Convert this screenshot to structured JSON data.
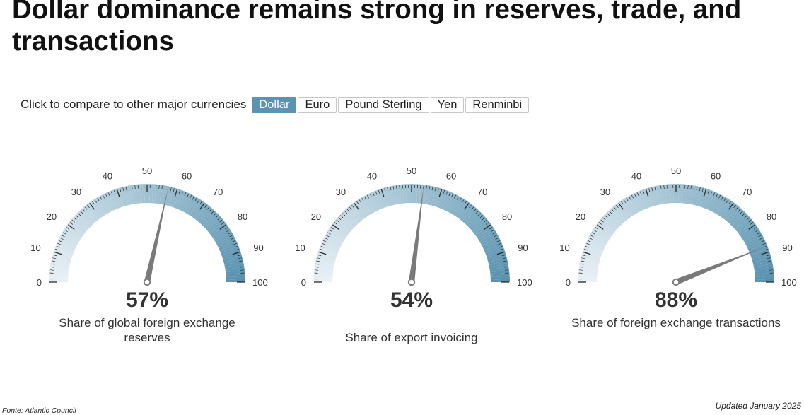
{
  "title": "Dollar dominance remains strong in reserves, trade, and transactions",
  "compare": {
    "label": "Click to compare to other major currencies",
    "buttons": [
      "Dollar",
      "Euro",
      "Pound Sterling",
      "Yen",
      "Renminbi"
    ],
    "active": "Dollar"
  },
  "colors": {
    "accent": "#5b93b1",
    "gauge_light": "#e8f0f5",
    "gauge_dark": "#5a93b0",
    "needle": "#7a7a7a"
  },
  "chart_data": [
    {
      "type": "gauge",
      "value": 57,
      "value_label": "57%",
      "caption": "Share of global foreign exchange reserves",
      "range": [
        0,
        100
      ],
      "tick_labels": [
        "0",
        "10",
        "20",
        "30",
        "40",
        "50",
        "60",
        "70",
        "80",
        "90",
        "100"
      ]
    },
    {
      "type": "gauge",
      "value": 54,
      "value_label": "54%",
      "caption": "Share of export invoicing",
      "range": [
        0,
        100
      ],
      "tick_labels": [
        "0",
        "10",
        "20",
        "30",
        "40",
        "50",
        "60",
        "70",
        "80",
        "90",
        "100"
      ]
    },
    {
      "type": "gauge",
      "value": 88,
      "value_label": "88%",
      "caption": "Share of foreign exchange transactions",
      "range": [
        0,
        100
      ],
      "tick_labels": [
        "0",
        "10",
        "20",
        "30",
        "40",
        "50",
        "60",
        "70",
        "80",
        "90",
        "100"
      ]
    }
  ],
  "source": "Fonte: Atlantic Council",
  "updated": "Updated January 2025"
}
